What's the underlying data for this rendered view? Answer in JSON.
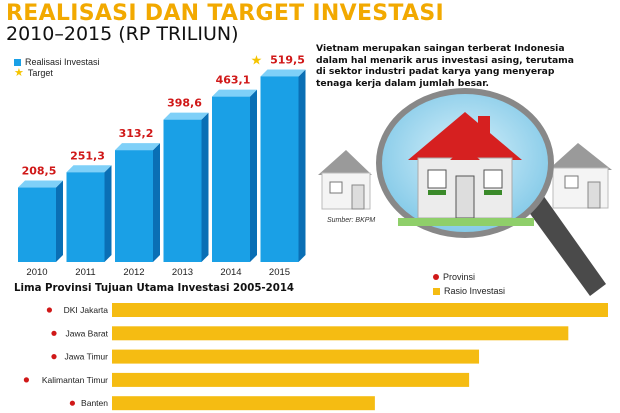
{
  "header": {
    "title": "REALISASI DAN TARGET INVESTASI",
    "subtitle": "2010–2015 (RP TRILIUN)"
  },
  "legend": {
    "realisasi": "Realisasi Investasi",
    "target": "Target"
  },
  "note": {
    "lines": [
      "Vietnam merupakan saingan terberat Indonesia",
      "dalam hal menarik arus investasi asing, terutama",
      "di sektor industri padat karya yang menyerap",
      "tenaga kerja dalam jumlah besar."
    ],
    "source": "Sumber: BKPM"
  },
  "section": {
    "title": "Lima Provinsi Tujuan Utama Investasi 2005-2014",
    "legend_provinsi": "Provinsi",
    "legend_rasio": "Rasio Investasi"
  },
  "colors": {
    "title": "#f2a900",
    "bar": "#1aa0e6",
    "bar_side": "#0a6fb5",
    "bar_top": "#7fd0f8",
    "value_label": "#d01818",
    "star": "#f5c400",
    "province_bar": "#f5bc12",
    "province_dot": "#d01818"
  },
  "icons": {
    "legend_target": "star-icon",
    "illustration": "magnifier-house-illustration"
  },
  "chart_data": [
    {
      "type": "bar",
      "title": "REALISASI DAN TARGET INVESTASI",
      "subtitle": "2010–2015 (RP TRILIUN)",
      "categories": [
        "2010",
        "2011",
        "2012",
        "2013",
        "2014",
        "2015"
      ],
      "values": [
        208.5,
        251.3,
        313.2,
        398.6,
        463.1,
        519.5
      ],
      "value_labels": [
        "208,5",
        "251,3",
        "313,2",
        "398,6",
        "463,1",
        "519,5"
      ],
      "target_index": 5,
      "series": [
        {
          "name": "Realisasi Investasi",
          "values": [
            208.5,
            251.3,
            313.2,
            398.6,
            463.1,
            null
          ]
        },
        {
          "name": "Target",
          "values": [
            null,
            null,
            null,
            null,
            null,
            519.5
          ]
        }
      ],
      "ylim": [
        0,
        560
      ],
      "grid": false,
      "legend": "top-left"
    },
    {
      "type": "bar",
      "orientation": "horizontal",
      "title": "Lima Provinsi Tujuan Utama Investasi 2005-2014",
      "categories": [
        "DKI Jakarta",
        "Jawa Barat",
        "Jawa Timur",
        "Kalimantan Timur",
        "Banten"
      ],
      "values": [
        100,
        92,
        74,
        72,
        53
      ],
      "value_unit": "relative (%)",
      "legend": "top-right"
    }
  ]
}
